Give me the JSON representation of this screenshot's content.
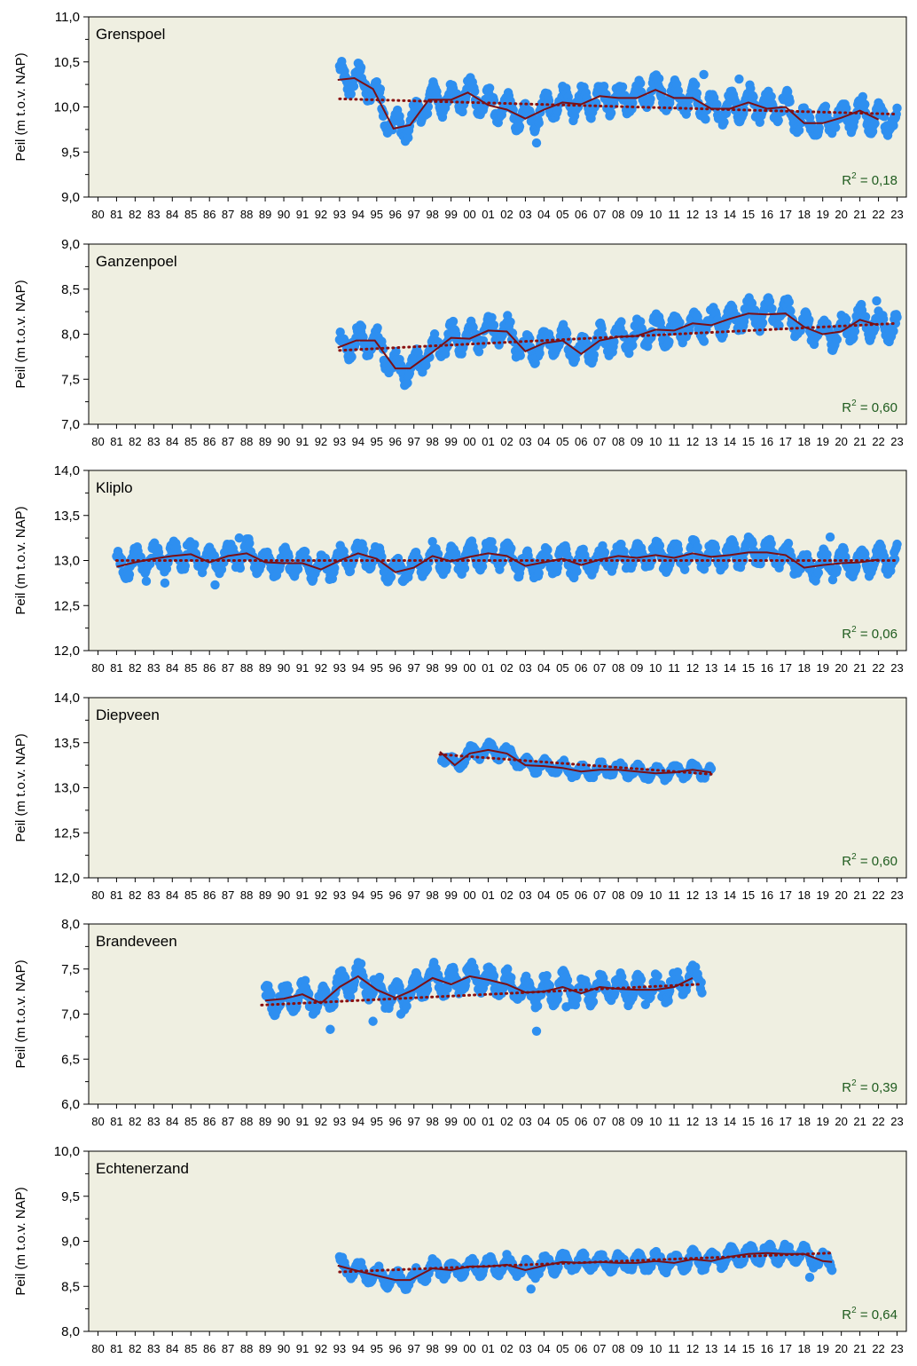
{
  "colors": {
    "background": "#efefe1",
    "points": "#2e8ff0",
    "trend_line": "#7a0f15",
    "regression_line": "#8a1010",
    "r2_text": "#1f5c1f"
  },
  "xtick_labels": [
    "80",
    "81",
    "82",
    "83",
    "84",
    "85",
    "86",
    "87",
    "88",
    "89",
    "90",
    "91",
    "92",
    "93",
    "94",
    "95",
    "96",
    "97",
    "98",
    "99",
    "00",
    "01",
    "02",
    "03",
    "04",
    "05",
    "06",
    "07",
    "08",
    "09",
    "10",
    "11",
    "12",
    "13",
    "14",
    "15",
    "16",
    "17",
    "18",
    "19",
    "20",
    "21",
    "22",
    "23"
  ],
  "chart_data": [
    {
      "type": "scatter",
      "title": "Grenspoel",
      "ylabel": "Peil (m t.o.v. NAP)",
      "ylim": [
        9.0,
        11.0
      ],
      "yticks": [
        "11,0",
        "10,5",
        "10,0",
        "9,5",
        "9,0"
      ],
      "r2": "0,18",
      "x_range": [
        1993.0,
        2023.0
      ],
      "trend": [
        [
          1992.9,
          10.3
        ],
        [
          1993.8,
          10.32
        ],
        [
          1994.8,
          10.2
        ],
        [
          1995.9,
          9.76
        ],
        [
          1996.8,
          9.8
        ],
        [
          1997.8,
          10.08
        ],
        [
          1999.0,
          10.08
        ],
        [
          1999.9,
          10.16
        ],
        [
          2001.0,
          10.02
        ],
        [
          2002.0,
          9.97
        ],
        [
          2003.0,
          9.87
        ],
        [
          2004.0,
          9.97
        ],
        [
          2005.0,
          10.05
        ],
        [
          2006.0,
          10.03
        ],
        [
          2007.0,
          10.12
        ],
        [
          2008.0,
          10.1
        ],
        [
          2009.0,
          10.1
        ],
        [
          2010.0,
          10.19
        ],
        [
          2011.0,
          10.1
        ],
        [
          2012.0,
          10.1
        ],
        [
          2013.0,
          9.98
        ],
        [
          2014.0,
          9.98
        ],
        [
          2015.0,
          10.05
        ],
        [
          2016.0,
          9.98
        ],
        [
          2017.0,
          10.0
        ],
        [
          2018.0,
          9.82
        ],
        [
          2019.0,
          9.82
        ],
        [
          2020.0,
          9.88
        ],
        [
          2021.0,
          9.96
        ],
        [
          2022.0,
          9.86
        ]
      ],
      "regression": [
        [
          1993.0,
          10.09
        ],
        [
          2023.0,
          9.92
        ]
      ],
      "outliers": [
        [
          2003.6,
          9.6
        ],
        [
          2012.6,
          10.36
        ],
        [
          2014.5,
          10.31
        ]
      ],
      "noise": [
        0.07,
        0.14
      ]
    },
    {
      "type": "scatter",
      "title": "Ganzenpoel",
      "ylabel": "Peil (m t.o.v. NAP)",
      "ylim": [
        7.0,
        9.0
      ],
      "yticks": [
        "9,0",
        "8,5",
        "8,0",
        "7,5",
        "7,0"
      ],
      "r2": "0,60",
      "x_range": [
        1993.0,
        2023.0
      ],
      "trend": [
        [
          1992.9,
          7.85
        ],
        [
          1993.9,
          7.93
        ],
        [
          1994.9,
          7.93
        ],
        [
          1996.0,
          7.62
        ],
        [
          1996.8,
          7.62
        ],
        [
          1998.0,
          7.8
        ],
        [
          1999.0,
          7.96
        ],
        [
          2000.0,
          7.95
        ],
        [
          2001.0,
          8.04
        ],
        [
          2002.0,
          8.03
        ],
        [
          2003.0,
          7.81
        ],
        [
          2004.0,
          7.9
        ],
        [
          2005.0,
          7.93
        ],
        [
          2006.0,
          7.78
        ],
        [
          2007.0,
          7.93
        ],
        [
          2008.0,
          7.97
        ],
        [
          2009.0,
          7.98
        ],
        [
          2010.0,
          8.05
        ],
        [
          2011.0,
          8.04
        ],
        [
          2012.0,
          8.12
        ],
        [
          2013.0,
          8.1
        ],
        [
          2014.0,
          8.17
        ],
        [
          2015.0,
          8.23
        ],
        [
          2016.0,
          8.22
        ],
        [
          2017.0,
          8.23
        ],
        [
          2018.0,
          8.08
        ],
        [
          2019.0,
          8.0
        ],
        [
          2020.0,
          8.03
        ],
        [
          2021.0,
          8.16
        ],
        [
          2022.0,
          8.1
        ]
      ],
      "regression": [
        [
          1993.0,
          7.82
        ],
        [
          2023.0,
          8.12
        ]
      ],
      "outliers": [
        [
          2021.9,
          8.37
        ]
      ],
      "noise": [
        0.07,
        0.13
      ]
    },
    {
      "type": "scatter",
      "title": "Kliplo",
      "ylabel": "Peil (m t.o.v. NAP)",
      "ylim": [
        12.0,
        14.0
      ],
      "yticks": [
        "14,0",
        "13,5",
        "13,0",
        "12,5",
        "12,0"
      ],
      "r2": "0,06",
      "x_range": [
        1981.0,
        2023.0
      ],
      "trend": [
        [
          1981.0,
          12.93
        ],
        [
          1982.0,
          12.98
        ],
        [
          1983.0,
          13.02
        ],
        [
          1984.0,
          13.05
        ],
        [
          1985.0,
          13.07
        ],
        [
          1986.0,
          12.98
        ],
        [
          1987.0,
          13.05
        ],
        [
          1988.0,
          13.08
        ],
        [
          1989.0,
          12.98
        ],
        [
          1990.0,
          12.97
        ],
        [
          1991.0,
          12.97
        ],
        [
          1992.0,
          12.9
        ],
        [
          1993.0,
          13.0
        ],
        [
          1994.0,
          13.08
        ],
        [
          1995.0,
          13.02
        ],
        [
          1996.0,
          12.87
        ],
        [
          1997.0,
          12.92
        ],
        [
          1998.0,
          13.05
        ],
        [
          1999.0,
          12.99
        ],
        [
          2000.0,
          13.04
        ],
        [
          2001.0,
          13.08
        ],
        [
          2002.0,
          13.05
        ],
        [
          2003.0,
          12.94
        ],
        [
          2004.0,
          12.98
        ],
        [
          2005.0,
          13.02
        ],
        [
          2006.0,
          12.95
        ],
        [
          2007.0,
          13.01
        ],
        [
          2008.0,
          13.05
        ],
        [
          2009.0,
          13.03
        ],
        [
          2010.0,
          13.06
        ],
        [
          2011.0,
          13.03
        ],
        [
          2012.0,
          13.08
        ],
        [
          2013.0,
          13.04
        ],
        [
          2014.0,
          13.06
        ],
        [
          2015.0,
          13.09
        ],
        [
          2016.0,
          13.09
        ],
        [
          2017.0,
          13.06
        ],
        [
          2018.0,
          12.92
        ],
        [
          2019.0,
          12.95
        ],
        [
          2020.0,
          12.97
        ],
        [
          2021.0,
          12.98
        ],
        [
          2022.0,
          13.01
        ]
      ],
      "regression": [
        [
          1981.0,
          13.0
        ],
        [
          2023.0,
          13.0
        ]
      ],
      "outliers": [
        [
          1987.6,
          13.25
        ],
        [
          1983.6,
          12.75
        ],
        [
          1986.3,
          12.73
        ],
        [
          1982.6,
          12.77
        ],
        [
          2019.4,
          13.26
        ],
        [
          1984.8,
          13.17
        ]
      ],
      "noise": [
        0.06,
        0.12
      ]
    },
    {
      "type": "scatter",
      "title": "Diepveen",
      "ylabel": "Peil (m t.o.v. NAP)",
      "ylim": [
        12.0,
        14.0
      ],
      "yticks": [
        "14,0",
        "13,5",
        "13,0",
        "12,5",
        "12,0"
      ],
      "r2": "0,60",
      "x_range": [
        1998.5,
        2013.0
      ],
      "trend": [
        [
          1998.4,
          13.4
        ],
        [
          1999.2,
          13.25
        ],
        [
          2000.0,
          13.38
        ],
        [
          2001.0,
          13.42
        ],
        [
          2002.0,
          13.38
        ],
        [
          2003.0,
          13.25
        ],
        [
          2004.0,
          13.24
        ],
        [
          2005.0,
          13.22
        ],
        [
          2006.0,
          13.18
        ],
        [
          2007.0,
          13.2
        ],
        [
          2008.0,
          13.2
        ],
        [
          2009.0,
          13.18
        ],
        [
          2010.0,
          13.16
        ],
        [
          2011.0,
          13.17
        ],
        [
          2012.0,
          13.2
        ],
        [
          2013.0,
          13.17
        ]
      ],
      "regression": [
        [
          1998.4,
          13.37
        ],
        [
          2013.0,
          13.15
        ]
      ],
      "outliers": [],
      "noise": [
        0.03,
        0.06
      ]
    },
    {
      "type": "scatter",
      "title": "Brandeveen",
      "ylabel": "Peil (m t.o.v. NAP)",
      "ylim": [
        6.0,
        8.0
      ],
      "yticks": [
        "8,0",
        "7,5",
        "7,0",
        "6,5",
        "6,0"
      ],
      "r2": "0,39",
      "x_range": [
        1989.0,
        2012.5
      ],
      "trend": [
        [
          1989.0,
          7.15
        ],
        [
          1990.0,
          7.17
        ],
        [
          1991.0,
          7.22
        ],
        [
          1992.0,
          7.12
        ],
        [
          1993.0,
          7.3
        ],
        [
          1994.0,
          7.42
        ],
        [
          1995.0,
          7.27
        ],
        [
          1996.0,
          7.18
        ],
        [
          1997.0,
          7.27
        ],
        [
          1998.0,
          7.4
        ],
        [
          1999.0,
          7.33
        ],
        [
          2000.0,
          7.42
        ],
        [
          2001.0,
          7.38
        ],
        [
          2002.0,
          7.33
        ],
        [
          2003.0,
          7.24
        ],
        [
          2004.0,
          7.25
        ],
        [
          2005.0,
          7.3
        ],
        [
          2006.0,
          7.23
        ],
        [
          2007.0,
          7.3
        ],
        [
          2008.0,
          7.28
        ],
        [
          2009.0,
          7.27
        ],
        [
          2010.0,
          7.27
        ],
        [
          2011.0,
          7.3
        ],
        [
          2012.0,
          7.4
        ]
      ],
      "regression": [
        [
          1988.8,
          7.1
        ],
        [
          2012.3,
          7.33
        ]
      ],
      "outliers": [
        [
          1992.5,
          6.83
        ],
        [
          1994.8,
          6.92
        ],
        [
          1996.3,
          7.0
        ],
        [
          2003.6,
          6.81
        ],
        [
          2005.2,
          7.08
        ],
        [
          2002.5,
          7.18
        ]
      ],
      "noise": [
        0.07,
        0.12
      ]
    },
    {
      "type": "scatter",
      "title": "Echtenerzand",
      "ylabel": "Peil (m t.o.v. NAP)",
      "ylim": [
        8.0,
        10.0
      ],
      "yticks": [
        "10,0",
        "9,5",
        "9,0",
        "8,5",
        "8,0"
      ],
      "r2": "0,64",
      "x_range": [
        1993.0,
        2019.5
      ],
      "trend": [
        [
          1992.9,
          8.73
        ],
        [
          1994.0,
          8.67
        ],
        [
          1995.0,
          8.62
        ],
        [
          1996.0,
          8.57
        ],
        [
          1996.8,
          8.57
        ],
        [
          1998.0,
          8.7
        ],
        [
          1999.0,
          8.68
        ],
        [
          2000.0,
          8.72
        ],
        [
          2001.0,
          8.72
        ],
        [
          2002.0,
          8.74
        ],
        [
          2003.0,
          8.68
        ],
        [
          2004.0,
          8.73
        ],
        [
          2005.0,
          8.77
        ],
        [
          2006.0,
          8.76
        ],
        [
          2007.0,
          8.77
        ],
        [
          2008.0,
          8.76
        ],
        [
          2009.0,
          8.76
        ],
        [
          2010.0,
          8.78
        ],
        [
          2011.0,
          8.76
        ],
        [
          2012.0,
          8.8
        ],
        [
          2013.0,
          8.78
        ],
        [
          2014.0,
          8.83
        ],
        [
          2015.0,
          8.86
        ],
        [
          2016.0,
          8.87
        ],
        [
          2017.0,
          8.86
        ],
        [
          2018.0,
          8.86
        ],
        [
          2019.0,
          8.78
        ],
        [
          2019.5,
          8.77
        ]
      ],
      "regression": [
        [
          1993.0,
          8.66
        ],
        [
          2019.5,
          8.87
        ]
      ],
      "outliers": [
        [
          2003.3,
          8.47
        ],
        [
          2018.3,
          8.6
        ]
      ],
      "noise": [
        0.04,
        0.08
      ]
    }
  ]
}
